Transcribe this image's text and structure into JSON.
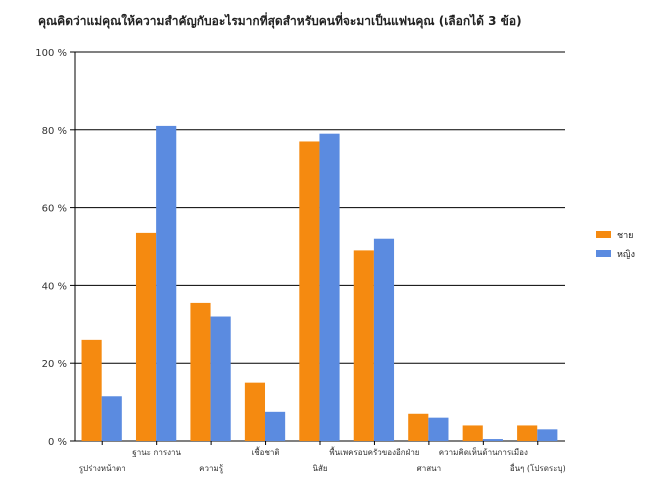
{
  "chart_data": {
    "type": "bar",
    "title": "คุณคิดว่าแม่คุณให้ความสำคัญกับอะไรมากที่สุดสำหรับคนที่จะมาเป็นแฟนคุณ (เลือกได้ 3 ข้อ)",
    "xlabel": "",
    "ylabel": "",
    "ylim": [
      0,
      100
    ],
    "yticks": [
      "0 %",
      "20 %",
      "40 %",
      "60 %",
      "80 %",
      "100 %"
    ],
    "yticks_values": [
      0,
      20,
      40,
      60,
      80,
      100
    ],
    "grid": true,
    "legend_position": "right",
    "categories": [
      "รูปร่างหน้าตา",
      "ฐานะ การงาน",
      "ความรู้",
      "เชื้อชาติ",
      "นิสัย",
      "พื้นเพครอบครัวของอีกฝ่าย",
      "ศาสนา",
      "ความคิดเห็นด้านการเมือง",
      "อื่นๆ (โปรดระบุ)"
    ],
    "series": [
      {
        "name": "ชาย",
        "color": "#F58A10",
        "values": [
          26,
          53.5,
          35.5,
          15,
          77,
          49,
          7,
          4,
          4
        ]
      },
      {
        "name": "หญิง",
        "color": "#5B8BE0",
        "values": [
          11.5,
          81,
          32,
          7.5,
          79,
          52,
          6,
          0.5,
          3
        ]
      }
    ]
  }
}
